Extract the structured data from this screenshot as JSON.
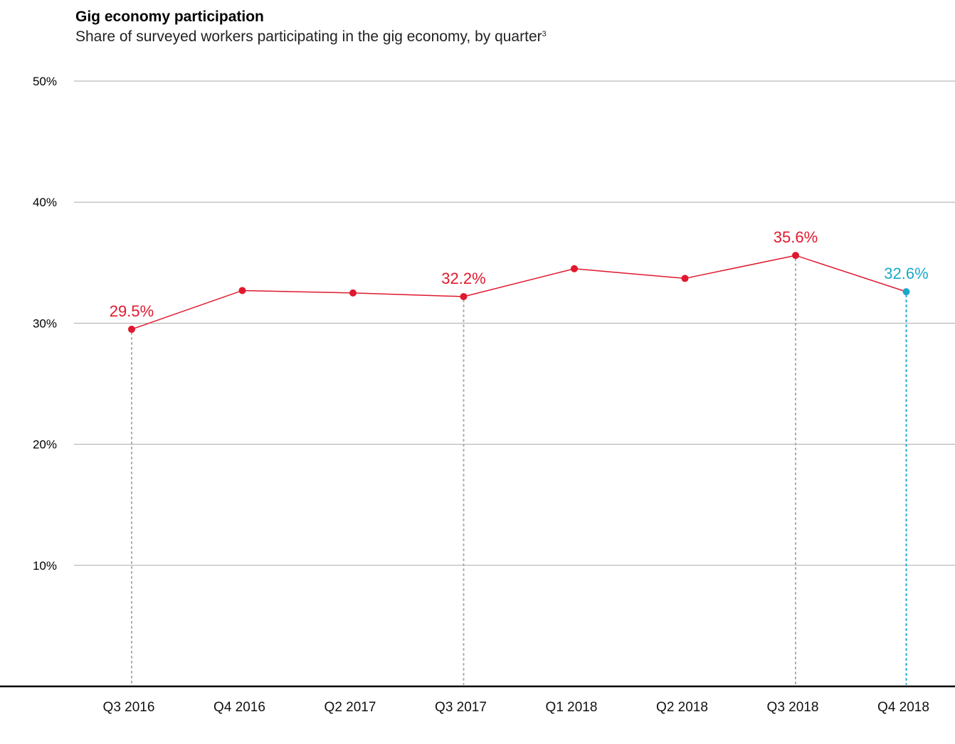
{
  "chart_data": {
    "type": "line",
    "title": "Gig economy participation",
    "subtitle": "Share of surveyed workers participating in the gig economy, by quarter",
    "subtitle_footnote": "3",
    "xlabel": "",
    "ylabel": "",
    "ylim": [
      0,
      50
    ],
    "yticks": [
      10,
      20,
      30,
      40,
      50
    ],
    "ytick_labels": [
      "10%",
      "20%",
      "30%",
      "40%",
      "50%"
    ],
    "grid": true,
    "categories": [
      "Q3 2016",
      "Q4 2016",
      "Q2 2017",
      "Q3 2017",
      "Q1 2018",
      "Q2 2018",
      "Q3 2018",
      "Q4 2018"
    ],
    "series": [
      {
        "values": [
          29.5,
          32.7,
          32.5,
          32.2,
          34.5,
          33.7,
          35.6,
          32.6
        ],
        "color": "#e0182d",
        "highlight_last_color": "#1aa9c9"
      }
    ],
    "data_labels": [
      {
        "index": 0,
        "text": "29.5%",
        "color": "#e0182d"
      },
      {
        "index": 3,
        "text": "32.2%",
        "color": "#e0182d"
      },
      {
        "index": 6,
        "text": "35.6%",
        "color": "#e0182d"
      },
      {
        "index": 7,
        "text": "32.6%",
        "color": "#1aa9c9"
      }
    ],
    "colors": {
      "line": "#e0182d",
      "highlight": "#1aa9c9",
      "grid": "#aaaaaa",
      "dropline": "#aaaaaa",
      "axis": "#000000"
    }
  }
}
